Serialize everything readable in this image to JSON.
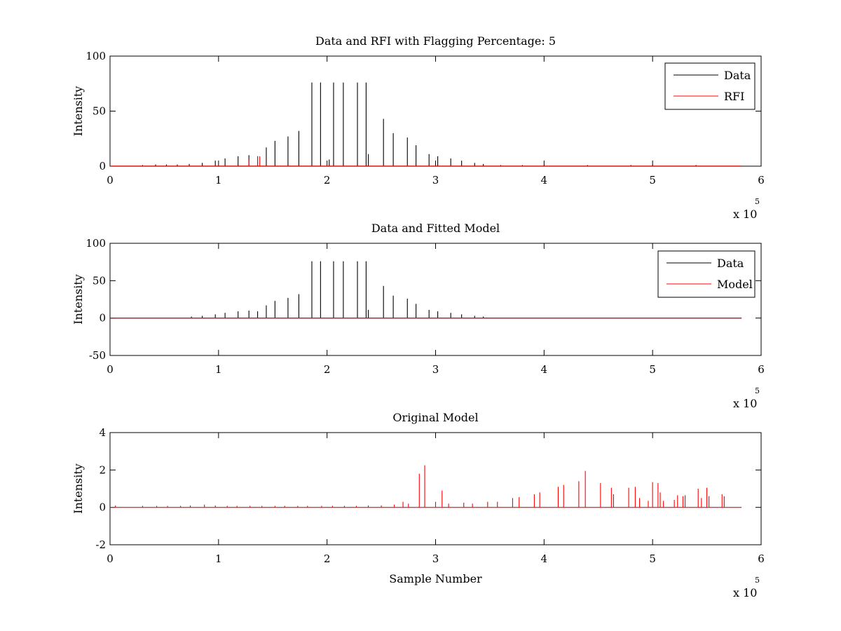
{
  "chart_data": [
    {
      "type": "line",
      "title": "Data and RFI with Flagging Percentage: 5",
      "xlabel": "",
      "ylabel": "Intensity",
      "xlim": [
        0,
        6
      ],
      "ylim": [
        0,
        100
      ],
      "xticks": [
        "0",
        "1",
        "2",
        "3",
        "4",
        "5",
        "6"
      ],
      "yticks": [
        "0",
        "50",
        "100"
      ],
      "x_multiplier": "x 10",
      "x_multiplier_exp": "5",
      "x_unit_scale": 100000,
      "grid": false,
      "legend_position": "top-right",
      "series": [
        {
          "name": "Data",
          "color": "#000000",
          "peaks": [
            [
              0.3,
              1
            ],
            [
              0.42,
              1.5
            ],
            [
              0.52,
              1.5
            ],
            [
              0.62,
              1.5
            ],
            [
              0.73,
              2
            ],
            [
              0.85,
              3
            ],
            [
              0.97,
              5
            ],
            [
              1.06,
              7
            ],
            [
              1.18,
              9
            ],
            [
              1.28,
              10
            ],
            [
              1.36,
              9
            ],
            [
              1.44,
              17
            ],
            [
              1.52,
              23
            ],
            [
              1.64,
              27
            ],
            [
              1.74,
              32
            ],
            [
              1.86,
              76
            ],
            [
              1.94,
              76
            ],
            [
              2.02,
              6
            ],
            [
              2.06,
              76
            ],
            [
              2.15,
              76
            ],
            [
              2.28,
              76
            ],
            [
              2.36,
              76
            ],
            [
              2.38,
              11
            ],
            [
              2.52,
              43
            ],
            [
              2.61,
              30
            ],
            [
              2.74,
              26
            ],
            [
              2.82,
              19
            ],
            [
              2.94,
              11
            ],
            [
              3.02,
              9
            ],
            [
              3.14,
              7
            ],
            [
              3.24,
              5
            ],
            [
              3.36,
              3
            ],
            [
              3.44,
              2
            ],
            [
              3.6,
              1
            ],
            [
              3.8,
              1
            ],
            [
              4.0,
              1
            ],
            [
              4.4,
              1
            ],
            [
              4.8,
              1
            ],
            [
              5.0,
              1
            ],
            [
              5.4,
              1
            ]
          ]
        },
        {
          "name": "RFI",
          "color": "#ff0000",
          "peaks": [
            [
              1.28,
              6
            ],
            [
              1.36,
              9
            ],
            [
              1.38,
              9
            ]
          ]
        }
      ],
      "x_end": 5.82
    },
    {
      "type": "line",
      "title": "Data and Fitted Model",
      "xlabel": "",
      "ylabel": "Intensity",
      "xlim": [
        0,
        6
      ],
      "ylim": [
        -50,
        100
      ],
      "xticks": [
        "0",
        "1",
        "2",
        "3",
        "4",
        "5",
        "6"
      ],
      "yticks": [
        "-50",
        "0",
        "50",
        "100"
      ],
      "x_multiplier": "x 10",
      "x_multiplier_exp": "5",
      "x_unit_scale": 100000,
      "grid": false,
      "legend_position": "top-right",
      "series": [
        {
          "name": "Data",
          "color": "#000000",
          "peaks": [
            [
              0.75,
              2
            ],
            [
              0.85,
              3
            ],
            [
              0.97,
              5
            ],
            [
              1.06,
              7
            ],
            [
              1.18,
              9
            ],
            [
              1.28,
              10
            ],
            [
              1.36,
              9
            ],
            [
              1.44,
              17
            ],
            [
              1.52,
              23
            ],
            [
              1.64,
              27
            ],
            [
              1.74,
              32
            ],
            [
              1.86,
              76
            ],
            [
              1.94,
              76
            ],
            [
              2.06,
              76
            ],
            [
              2.15,
              76
            ],
            [
              2.28,
              76
            ],
            [
              2.36,
              76
            ],
            [
              2.38,
              11
            ],
            [
              2.52,
              43
            ],
            [
              2.61,
              30
            ],
            [
              2.74,
              26
            ],
            [
              2.82,
              19
            ],
            [
              2.94,
              11
            ],
            [
              3.02,
              9
            ],
            [
              3.14,
              7
            ],
            [
              3.24,
              5
            ],
            [
              3.36,
              3
            ],
            [
              3.44,
              2
            ]
          ]
        },
        {
          "name": "Model",
          "color": "#ff0000",
          "peaks": []
        }
      ],
      "x_end": 5.82
    },
    {
      "type": "line",
      "title": "Original Model",
      "xlabel": "Sample Number",
      "ylabel": "Intensity",
      "xlim": [
        0,
        6
      ],
      "ylim": [
        -2,
        4
      ],
      "xticks": [
        "0",
        "1",
        "2",
        "3",
        "4",
        "5",
        "6"
      ],
      "yticks": [
        "-2",
        "0",
        "2",
        "4"
      ],
      "x_multiplier": "x 10",
      "x_multiplier_exp": "5",
      "x_unit_scale": 100000,
      "grid": false,
      "legend_position": "none",
      "series": [
        {
          "name": "",
          "color": "#ff0000",
          "peaks": [
            [
              0.05,
              0.1
            ],
            [
              0.3,
              0.08
            ],
            [
              0.43,
              0.08
            ],
            [
              0.53,
              0.08
            ],
            [
              0.65,
              0.08
            ],
            [
              0.74,
              0.1
            ],
            [
              0.87,
              0.15
            ],
            [
              0.97,
              0.1
            ],
            [
              1.08,
              0.08
            ],
            [
              1.17,
              0.08
            ],
            [
              1.29,
              0.08
            ],
            [
              1.4,
              0.08
            ],
            [
              1.52,
              0.08
            ],
            [
              1.61,
              0.08
            ],
            [
              1.73,
              0.08
            ],
            [
              1.82,
              0.08
            ],
            [
              1.95,
              0.08
            ],
            [
              2.05,
              0.08
            ],
            [
              2.16,
              0.08
            ],
            [
              2.27,
              0.08
            ],
            [
              2.38,
              0.1
            ],
            [
              2.5,
              0.1
            ],
            [
              2.62,
              0.15
            ],
            [
              2.7,
              0.3
            ],
            [
              2.75,
              0.2
            ],
            [
              2.85,
              1.8
            ],
            [
              2.9,
              2.25
            ],
            [
              3.0,
              0.3
            ],
            [
              3.06,
              0.9
            ],
            [
              3.12,
              0.2
            ],
            [
              3.26,
              0.25
            ],
            [
              3.34,
              0.2
            ],
            [
              3.48,
              0.3
            ],
            [
              3.57,
              0.3
            ],
            [
              3.71,
              0.5
            ],
            [
              3.77,
              0.55
            ],
            [
              3.91,
              0.7
            ],
            [
              3.96,
              0.8
            ],
            [
              4.13,
              1.1
            ],
            [
              4.18,
              1.2
            ],
            [
              4.32,
              1.4
            ],
            [
              4.38,
              1.95
            ],
            [
              4.52,
              1.3
            ],
            [
              4.62,
              1.05
            ],
            [
              4.64,
              0.7
            ],
            [
              4.78,
              1.05
            ],
            [
              4.84,
              1.1
            ],
            [
              4.88,
              0.5
            ],
            [
              4.96,
              0.35
            ],
            [
              5.0,
              1.35
            ],
            [
              5.05,
              1.3
            ],
            [
              5.07,
              0.8
            ],
            [
              5.1,
              0.35
            ],
            [
              5.2,
              0.4
            ],
            [
              5.23,
              0.65
            ],
            [
              5.28,
              0.6
            ],
            [
              5.3,
              0.65
            ],
            [
              5.42,
              1.0
            ],
            [
              5.45,
              0.5
            ],
            [
              5.5,
              1.05
            ],
            [
              5.52,
              0.6
            ],
            [
              5.64,
              0.7
            ],
            [
              5.66,
              0.6
            ]
          ]
        }
      ],
      "x_end": 5.82
    }
  ]
}
